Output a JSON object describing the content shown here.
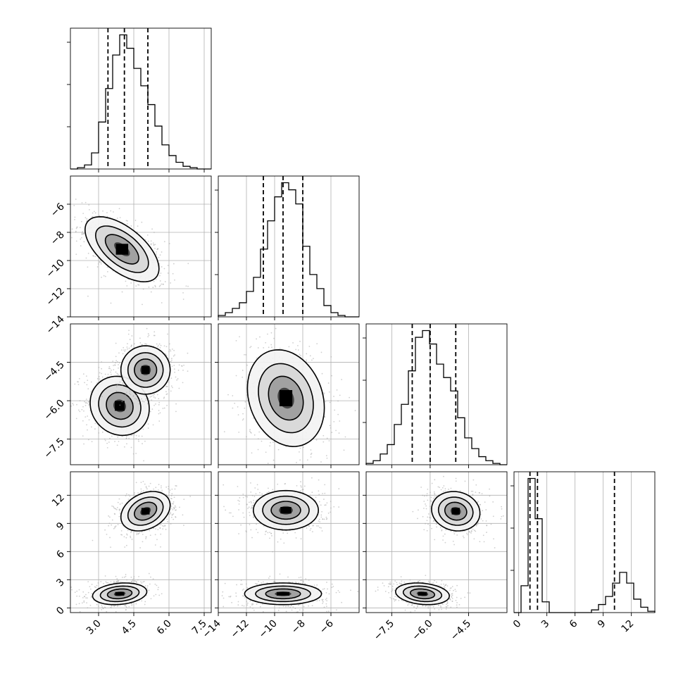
{
  "chart_data": {
    "type": "corner",
    "title": "",
    "grid": true,
    "n_params": 4,
    "axis_labels": [
      "",
      "",
      "",
      ""
    ],
    "ranges": [
      [
        1.8,
        7.8
      ],
      [
        -14.0,
        -4.0
      ],
      [
        -8.5,
        -3.0
      ],
      [
        -0.5,
        14.5
      ]
    ],
    "ticks": [
      {
        "values": [
          3.0,
          4.5,
          6.0,
          7.5
        ],
        "labels": [
          "3.0",
          "4.5",
          "6.0",
          "7.5"
        ]
      },
      {
        "values": [
          -14,
          -12,
          -10,
          -8,
          -6
        ],
        "labels": [
          "−14",
          "−12",
          "−10",
          "−8",
          "−6"
        ]
      },
      {
        "values": [
          -7.5,
          -6.0,
          -4.5
        ],
        "labels": [
          "−7.5",
          "−6.0",
          "−4.5"
        ]
      },
      {
        "values": [
          0,
          3,
          6,
          9,
          12
        ],
        "labels": [
          "0",
          "3",
          "6",
          "9",
          "12"
        ]
      }
    ],
    "histograms": [
      {
        "param": 0,
        "quantiles": [
          3.4,
          4.1,
          5.1
        ],
        "edges": [
          1.8,
          2.1,
          2.4,
          2.7,
          3.0,
          3.3,
          3.6,
          3.9,
          4.2,
          4.5,
          4.8,
          5.1,
          5.4,
          5.7,
          6.0,
          6.3,
          6.6,
          6.9,
          7.2,
          7.5,
          7.8
        ],
        "counts": [
          0,
          1,
          3,
          12,
          35,
          60,
          85,
          100,
          90,
          75,
          62,
          48,
          32,
          18,
          10,
          5,
          2,
          1,
          0,
          0
        ]
      },
      {
        "param": 1,
        "quantiles": [
          -10.8,
          -9.4,
          -8.0
        ],
        "edges": [
          -14.0,
          -13.5,
          -13.0,
          -12.5,
          -12.0,
          -11.5,
          -11.0,
          -10.5,
          -10.0,
          -9.5,
          -9.0,
          -8.5,
          -8.0,
          -7.5,
          -7.0,
          -6.5,
          -6.0,
          -5.5,
          -5.0,
          -4.5,
          -4.0
        ],
        "counts": [
          1,
          3,
          6,
          10,
          18,
          28,
          48,
          68,
          85,
          95,
          90,
          80,
          50,
          30,
          20,
          8,
          3,
          1,
          0,
          0
        ]
      },
      {
        "param": 2,
        "quantiles": [
          -6.7,
          -6.0,
          -5.0
        ],
        "edges": [
          -8.5,
          -8.225,
          -7.95,
          -7.675,
          -7.4,
          -7.125,
          -6.85,
          -6.575,
          -6.3,
          -6.025,
          -5.75,
          -5.475,
          -5.2,
          -4.925,
          -4.65,
          -4.375,
          -4.1,
          -3.825,
          -3.55,
          -3.275,
          -3.0
        ],
        "counts": [
          1,
          3,
          8,
          15,
          30,
          45,
          70,
          95,
          100,
          90,
          75,
          65,
          55,
          35,
          20,
          12,
          6,
          3,
          1,
          0
        ]
      },
      {
        "param": 3,
        "quantiles": [
          1.2,
          2.0,
          10.2
        ],
        "edges": [
          -0.5,
          0.25,
          1.0,
          1.75,
          2.5,
          3.25,
          4.0,
          4.75,
          5.5,
          6.25,
          7.0,
          7.75,
          8.5,
          9.25,
          10.0,
          10.75,
          11.5,
          12.25,
          13.0,
          13.75,
          14.5
        ],
        "counts": [
          0,
          20,
          100,
          70,
          8,
          0,
          0,
          0,
          0,
          0,
          0,
          2,
          6,
          12,
          22,
          30,
          22,
          10,
          4,
          1
        ]
      }
    ],
    "pairs": [
      {
        "x": 0,
        "y": 1,
        "modes": [
          {
            "mean": [
              4.0,
              -9.2
            ],
            "sd": [
              0.75,
              1.1
            ],
            "rho": -0.6
          }
        ]
      },
      {
        "x": 0,
        "y": 2,
        "modes": [
          {
            "mean": [
              3.9,
              -6.2
            ],
            "sd": [
              0.6,
              0.55
            ],
            "rho": -0.1
          },
          {
            "mean": [
              5.0,
              -4.8
            ],
            "sd": [
              0.5,
              0.45
            ],
            "rho": 0.0
          }
        ]
      },
      {
        "x": 1,
        "y": 2,
        "modes": [
          {
            "mean": [
              -9.2,
              -5.9
            ],
            "sd": [
              1.3,
              0.9
            ],
            "rho": -0.2
          }
        ]
      },
      {
        "x": 0,
        "y": 3,
        "modes": [
          {
            "mean": [
              3.9,
              1.5
            ],
            "sd": [
              0.55,
              0.55
            ],
            "rho": 0.2
          },
          {
            "mean": [
              5.0,
              10.3
            ],
            "sd": [
              0.5,
              1.0
            ],
            "rho": 0.3
          }
        ]
      },
      {
        "x": 1,
        "y": 3,
        "modes": [
          {
            "mean": [
              -9.4,
              1.5
            ],
            "sd": [
              1.3,
              0.55
            ],
            "rho": 0.0
          },
          {
            "mean": [
              -9.2,
              10.4
            ],
            "sd": [
              1.1,
              1.0
            ],
            "rho": 0.0
          }
        ]
      },
      {
        "x": 2,
        "y": 3,
        "modes": [
          {
            "mean": [
              -6.3,
              1.5
            ],
            "sd": [
              0.5,
              0.55
            ],
            "rho": -0.2
          },
          {
            "mean": [
              -5.0,
              10.3
            ],
            "sd": [
              0.45,
              1.0
            ],
            "rho": -0.1
          }
        ]
      }
    ]
  }
}
